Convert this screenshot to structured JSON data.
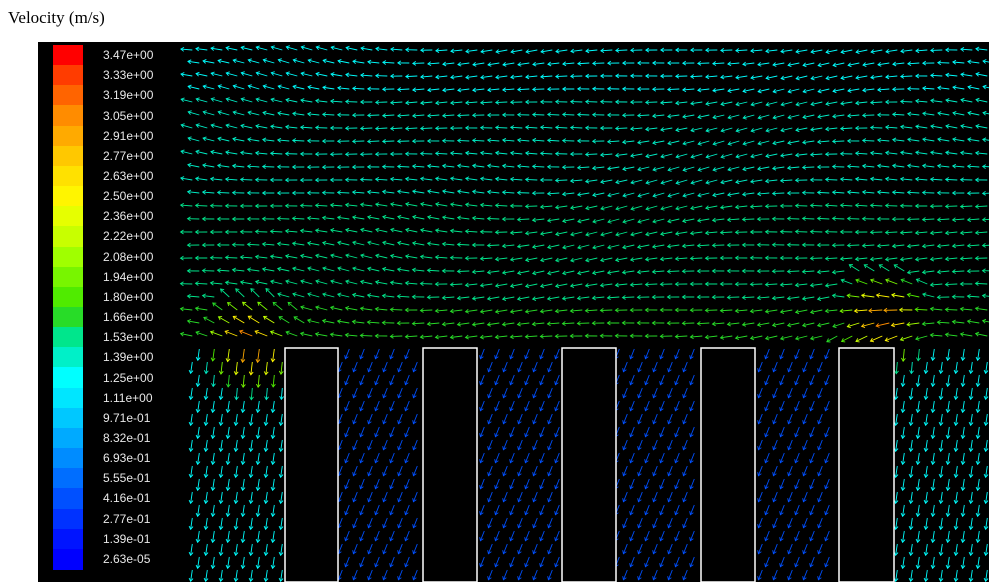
{
  "caption": "Velocity (m/s)",
  "colormap": {
    "labels": [
      "3.47e+00",
      "3.33e+00",
      "3.19e+00",
      "3.05e+00",
      "2.91e+00",
      "2.77e+00",
      "2.63e+00",
      "2.50e+00",
      "2.36e+00",
      "2.22e+00",
      "2.08e+00",
      "1.94e+00",
      "1.80e+00",
      "1.66e+00",
      "1.53e+00",
      "1.39e+00",
      "1.25e+00",
      "1.11e+00",
      "9.71e-01",
      "8.32e-01",
      "6.93e-01",
      "5.55e-01",
      "4.16e-01",
      "2.77e-01",
      "1.39e-01",
      "2.63e-05"
    ],
    "colors": [
      "#ff0000",
      "#ff3c00",
      "#ff6400",
      "#ff8c00",
      "#ffaa00",
      "#ffc800",
      "#ffe100",
      "#fff500",
      "#e6ff00",
      "#c8ff00",
      "#a0ff00",
      "#78f500",
      "#50eb00",
      "#28dc28",
      "#00e68c",
      "#00f0c8",
      "#00ffff",
      "#00e6ff",
      "#00c8ff",
      "#00aaff",
      "#008cff",
      "#006eff",
      "#0050ff",
      "#0032ff",
      "#0014ff",
      "#0000ff"
    ]
  },
  "geometry_colors": {
    "block_outline": "#ffffff",
    "background": "#000000"
  }
}
